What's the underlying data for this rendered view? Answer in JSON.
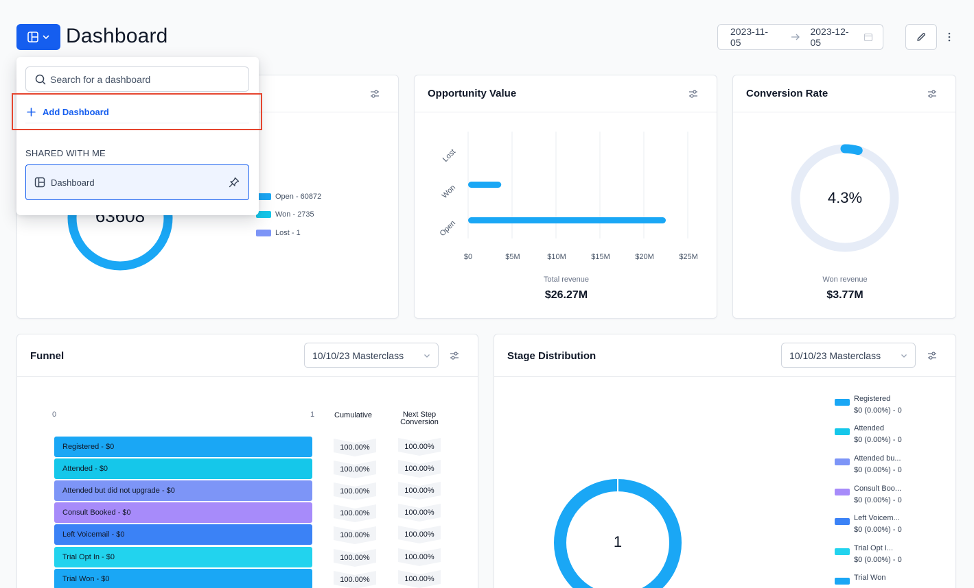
{
  "header": {
    "title": "Dashboard",
    "date_start": "2023-11-05",
    "date_end": "2023-12-05"
  },
  "dropdown": {
    "search_placeholder": "Search for a dashboard",
    "add_label": "Add Dashboard",
    "section_label": "SHARED WITH ME",
    "items": [
      {
        "label": "Dashboard"
      }
    ]
  },
  "opportunities_card": {
    "total": "63608",
    "legend": [
      {
        "label": "Open - 60872",
        "color": "#1aa7f5"
      },
      {
        "label": "Won - 2735",
        "color": "#15c7ea"
      },
      {
        "label": "Lost - 1",
        "color": "#7d95f7"
      }
    ]
  },
  "opportunity_value": {
    "title": "Opportunity Value",
    "footer_label": "Total revenue",
    "footer_value": "$26.27M",
    "chart_data": {
      "type": "bar",
      "orientation": "horizontal",
      "categories": [
        "Lost",
        "Won",
        "Open"
      ],
      "values": [
        0,
        3.77,
        22.5
      ],
      "xlim": [
        0,
        25
      ],
      "x_ticks": [
        "$0",
        "$5M",
        "$10M",
        "$15M",
        "$20M",
        "$25M"
      ],
      "color": "#1aa7f5"
    }
  },
  "conversion_rate": {
    "title": "Conversion Rate",
    "value": "4.3%",
    "fraction": 0.043,
    "footer_label": "Won revenue",
    "footer_value": "$3.77M"
  },
  "funnel": {
    "title": "Funnel",
    "select_value": "10/10/23 Masterclass",
    "axis_start": "0",
    "axis_end": "1",
    "col_cumulative": "Cumulative",
    "col_next_1": "Next Step",
    "col_next_2": "Conversion",
    "rows": [
      {
        "label": "Registered - $0",
        "color": "#1aa7f5",
        "cumulative": "100.00%",
        "next": "100.00%"
      },
      {
        "label": "Attended - $0",
        "color": "#15c7ea",
        "cumulative": "100.00%",
        "next": "100.00%"
      },
      {
        "label": "Attended but did not upgrade - $0",
        "color": "#7d95f7",
        "cumulative": "100.00%",
        "next": "100.00%"
      },
      {
        "label": "Consult Booked - $0",
        "color": "#a78bfa",
        "cumulative": "100.00%",
        "next": "100.00%"
      },
      {
        "label": "Left Voicemail - $0",
        "color": "#3b82f6",
        "cumulative": "100.00%",
        "next": "100.00%"
      },
      {
        "label": "Trial Opt In - $0",
        "color": "#22d3ee",
        "cumulative": "100.00%",
        "next": "100.00%"
      },
      {
        "label": "Trial Won - $0",
        "color": "#1aa7f5",
        "cumulative": "100.00%",
        "next": "100.00%"
      }
    ]
  },
  "stage_distribution": {
    "title": "Stage Distribution",
    "select_value": "10/10/23 Masterclass",
    "center_value": "1",
    "legend": [
      {
        "name": "Registered",
        "value": "$0 (0.00%) - 0",
        "color": "#1aa7f5"
      },
      {
        "name": "Attended",
        "value": "$0 (0.00%) - 0",
        "color": "#15c7ea"
      },
      {
        "name": "Attended bu...",
        "value": "$0 (0.00%) - 0",
        "color": "#7d95f7"
      },
      {
        "name": "Consult Boo...",
        "value": "$0 (0.00%) - 0",
        "color": "#a78bfa"
      },
      {
        "name": "Left Voicem...",
        "value": "$0 (0.00%) - 0",
        "color": "#3b82f6"
      },
      {
        "name": "Trial Opt I...",
        "value": "$0 (0.00%) - 0",
        "color": "#22d3ee"
      },
      {
        "name": "Trial Won",
        "value": "",
        "color": "#1aa7f5"
      }
    ]
  }
}
